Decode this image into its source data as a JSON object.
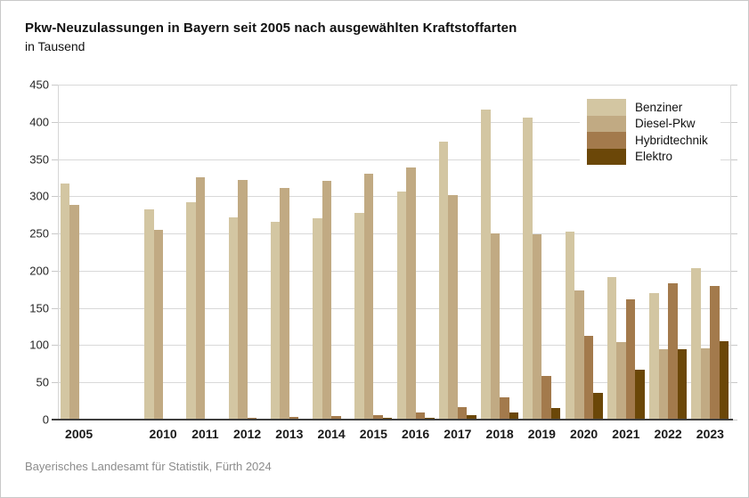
{
  "header": {
    "title": "Pkw-Neuzulassungen in Bayern seit 2005 nach ausgewählten Kraftstoffarten",
    "subtitle": "in Tausend"
  },
  "footer": {
    "source": "Bayerisches Landesamt für Statistik, Fürth 2024"
  },
  "chart_data": {
    "type": "bar",
    "title": "Pkw-Neuzulassungen in Bayern seit 2005 nach ausgewählten Kraftstoffarten",
    "subtitle": "in Tausend",
    "unit_label": "in Tausend",
    "categories": [
      "2005",
      "2010",
      "2011",
      "2012",
      "2013",
      "2014",
      "2015",
      "2016",
      "2017",
      "2018",
      "2019",
      "2020",
      "2021",
      "2022",
      "2023"
    ],
    "series": [
      {
        "name": "Benziner",
        "color": "#d3c6a2",
        "values": [
          317,
          283,
          292,
          272,
          266,
          270,
          278,
          307,
          373,
          417,
          406,
          252,
          192,
          170,
          204
        ]
      },
      {
        "name": "Diesel-Pkw",
        "color": "#c1aa83",
        "values": [
          288,
          255,
          325,
          322,
          311,
          321,
          330,
          339,
          302,
          250,
          249,
          174,
          104,
          94,
          96
        ]
      },
      {
        "name": "Hybridtechnik",
        "color": "#a37a4c",
        "values": [
          0,
          0,
          0,
          3,
          4,
          5,
          6,
          9,
          17,
          30,
          59,
          112,
          162,
          183,
          179
        ]
      },
      {
        "name": "Elektro",
        "color": "#6b4708",
        "values": [
          0,
          0,
          0,
          1,
          1,
          1,
          2,
          3,
          6,
          9,
          15,
          36,
          67,
          95,
          105
        ]
      }
    ],
    "ylim": [
      0,
      450
    ],
    "ytick_step": 50,
    "grid": true,
    "legend_position": "top-right",
    "gap_after_first_category": true,
    "slots": 16
  },
  "colors": {
    "background": "#ffffff",
    "frame_border": "#c9c9c9",
    "gridline": "#d9d9d9",
    "axis": "#404040",
    "text": "#111111",
    "source_text": "#8c8c8c"
  }
}
